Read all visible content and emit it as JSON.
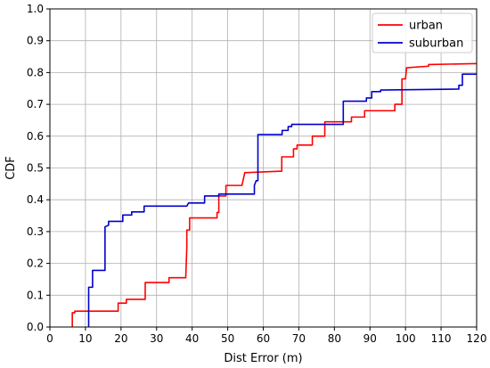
{
  "chart_data": {
    "type": "line",
    "xlabel": "Dist Error (m)",
    "ylabel": "CDF",
    "xlim": [
      0,
      120
    ],
    "ylim": [
      0,
      1
    ],
    "xticks": [
      "0",
      "10",
      "20",
      "30",
      "40",
      "50",
      "60",
      "70",
      "80",
      "90",
      "100",
      "110",
      "120"
    ],
    "yticks": [
      "0.0",
      "0.1",
      "0.2",
      "0.3",
      "0.4",
      "0.5",
      "0.6",
      "0.7",
      "0.8",
      "0.9",
      "1.0"
    ],
    "grid": true,
    "legend_position": "top-right",
    "series": [
      {
        "name": "urban",
        "color": "#ff0000",
        "points": [
          [
            6.3,
            0.0
          ],
          [
            6.3,
            0.045
          ],
          [
            7.0,
            0.045
          ],
          [
            7.0,
            0.05
          ],
          [
            19.2,
            0.05
          ],
          [
            19.2,
            0.075
          ],
          [
            21.5,
            0.075
          ],
          [
            21.5,
            0.087
          ],
          [
            26.8,
            0.087
          ],
          [
            26.8,
            0.14
          ],
          [
            33.5,
            0.14
          ],
          [
            33.5,
            0.155
          ],
          [
            38.2,
            0.155
          ],
          [
            38.5,
            0.25
          ],
          [
            38.5,
            0.305
          ],
          [
            39.3,
            0.305
          ],
          [
            39.3,
            0.343
          ],
          [
            47.0,
            0.343
          ],
          [
            47.0,
            0.36
          ],
          [
            47.5,
            0.36
          ],
          [
            47.5,
            0.412
          ],
          [
            49.5,
            0.412
          ],
          [
            49.5,
            0.445
          ],
          [
            54.0,
            0.445
          ],
          [
            54.8,
            0.485
          ],
          [
            65.2,
            0.49
          ],
          [
            65.2,
            0.535
          ],
          [
            68.5,
            0.535
          ],
          [
            68.5,
            0.56
          ],
          [
            69.5,
            0.56
          ],
          [
            69.5,
            0.572
          ],
          [
            73.8,
            0.572
          ],
          [
            73.8,
            0.6
          ],
          [
            77.3,
            0.6
          ],
          [
            77.3,
            0.645
          ],
          [
            84.8,
            0.645
          ],
          [
            84.8,
            0.66
          ],
          [
            88.5,
            0.66
          ],
          [
            88.5,
            0.68
          ],
          [
            97.0,
            0.68
          ],
          [
            97.0,
            0.7
          ],
          [
            99.0,
            0.7
          ],
          [
            99.0,
            0.78
          ],
          [
            100.0,
            0.78
          ],
          [
            100.3,
            0.815
          ],
          [
            106.5,
            0.82
          ],
          [
            106.5,
            0.825
          ],
          [
            119.0,
            0.828
          ],
          [
            120.0,
            0.828
          ]
        ]
      },
      {
        "name": "suburban",
        "color": "#0000cc",
        "points": [
          [
            10.9,
            0.0
          ],
          [
            10.9,
            0.125
          ],
          [
            12.0,
            0.125
          ],
          [
            12.0,
            0.178
          ],
          [
            15.5,
            0.178
          ],
          [
            15.5,
            0.315
          ],
          [
            16.5,
            0.32
          ],
          [
            16.5,
            0.332
          ],
          [
            20.5,
            0.332
          ],
          [
            20.5,
            0.352
          ],
          [
            23.0,
            0.352
          ],
          [
            23.0,
            0.362
          ],
          [
            26.5,
            0.362
          ],
          [
            26.5,
            0.38
          ],
          [
            38.5,
            0.38
          ],
          [
            39.0,
            0.39
          ],
          [
            43.5,
            0.39
          ],
          [
            43.5,
            0.412
          ],
          [
            47.5,
            0.412
          ],
          [
            47.5,
            0.418
          ],
          [
            57.5,
            0.418
          ],
          [
            57.5,
            0.445
          ],
          [
            58.0,
            0.46
          ],
          [
            58.5,
            0.46
          ],
          [
            58.5,
            0.605
          ],
          [
            65.3,
            0.605
          ],
          [
            65.3,
            0.618
          ],
          [
            67.0,
            0.618
          ],
          [
            67.0,
            0.63
          ],
          [
            68.0,
            0.63
          ],
          [
            68.0,
            0.637
          ],
          [
            82.5,
            0.637
          ],
          [
            82.5,
            0.71
          ],
          [
            89.0,
            0.71
          ],
          [
            89.0,
            0.72
          ],
          [
            90.5,
            0.72
          ],
          [
            90.5,
            0.74
          ],
          [
            93.0,
            0.74
          ],
          [
            93.0,
            0.745
          ],
          [
            115.0,
            0.748
          ],
          [
            115.0,
            0.76
          ],
          [
            116.0,
            0.76
          ],
          [
            116.0,
            0.795
          ],
          [
            120.0,
            0.795
          ]
        ]
      }
    ]
  }
}
